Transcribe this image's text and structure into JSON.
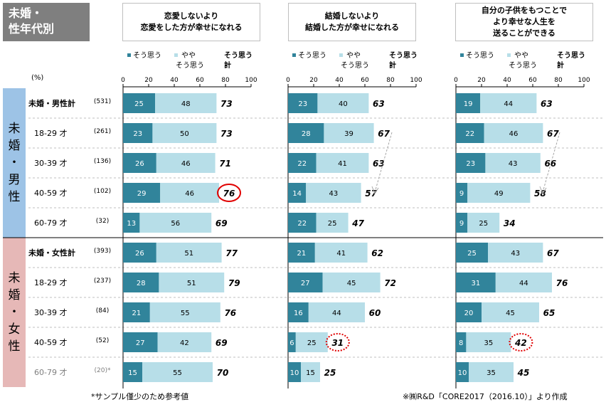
{
  "title": {
    "line1": "未婚・",
    "line2": "性年代別"
  },
  "unit": "(%)",
  "legend": {
    "strong": "そう思う",
    "weak_line1": "やや",
    "weak_line2": "そう思う",
    "total_line1": "そう思う",
    "total_line2": "計"
  },
  "questions": [
    {
      "line1": "恋愛しないより",
      "line2": "恋愛をした方が幸せになれる",
      "line3": ""
    },
    {
      "line1": "結婚しないより",
      "line2": "結婚した方が幸せになれる",
      "line3": ""
    },
    {
      "line1": "自分の子供をもつことで",
      "line2": "より幸せな人生を",
      "line3": "送ることができる"
    }
  ],
  "groups": [
    {
      "chars": [
        "未",
        "婚",
        "・",
        "男",
        "性"
      ]
    },
    {
      "chars": [
        "未",
        "婚",
        "・",
        "女",
        "性"
      ]
    }
  ],
  "rows": [
    {
      "label": "未婚・男性計",
      "n": "(531)",
      "bold": true
    },
    {
      "label": "18-29 才",
      "n": "(261)",
      "bold": false
    },
    {
      "label": "30-39 才",
      "n": "(136)",
      "bold": false
    },
    {
      "label": "40-59 才",
      "n": "(102)",
      "bold": false
    },
    {
      "label": "60-79 才",
      "n": "(32)",
      "bold": false
    },
    {
      "label": "未婚・女性計",
      "n": "(393)",
      "bold": true
    },
    {
      "label": "18-29 才",
      "n": "(237)",
      "bold": false
    },
    {
      "label": "30-39 才",
      "n": "(84)",
      "bold": false
    },
    {
      "label": "40-59 才",
      "n": "(52)",
      "bold": false
    },
    {
      "label": "60-79 才",
      "n": "(20)*",
      "bold": false,
      "muted": true
    }
  ],
  "note_left": "*サンプル僅少のため参考値",
  "note_right": "※㈱R&D「CORE2017（2016.10）」より作成",
  "colors": {
    "strong": "#31849b",
    "weak": "#b7dee8",
    "male_bg": "#9dc3e6",
    "female_bg": "#e6b8b7",
    "highlight": "#e00000",
    "arrow": "#a6a6a6"
  },
  "chart_data": {
    "type": "bar",
    "stacked": true,
    "orientation": "horizontal",
    "xlim": [
      0,
      100
    ],
    "ticks": [
      0,
      20,
      40,
      60,
      80,
      100
    ],
    "categories": [
      "未婚・男性計",
      "18-29 才",
      "30-39 才",
      "40-59 才",
      "60-79 才",
      "未婚・女性計",
      "18-29 才",
      "30-39 才",
      "40-59 才",
      "60-79 才"
    ],
    "panels": [
      {
        "title": "恋愛しないより恋愛をした方が幸せになれる",
        "series": [
          {
            "name": "そう思う",
            "values": [
              25,
              23,
              26,
              29,
              13,
              26,
              28,
              21,
              27,
              15
            ]
          },
          {
            "name": "やや そう思う",
            "values": [
              48,
              50,
              46,
              46,
              56,
              51,
              51,
              55,
              42,
              55
            ]
          }
        ],
        "totals": [
          73,
          73,
          71,
          76,
          69,
          77,
          79,
          76,
          69,
          70
        ],
        "highlight": [
          {
            "row": 3,
            "style": "solid"
          }
        ]
      },
      {
        "title": "結婚しないより結婚した方が幸せになれる",
        "series": [
          {
            "name": "そう思う",
            "values": [
              23,
              28,
              22,
              14,
              22,
              21,
              27,
              16,
              6,
              10
            ]
          },
          {
            "name": "やや そう思う",
            "values": [
              40,
              39,
              41,
              43,
              25,
              41,
              45,
              44,
              25,
              15
            ]
          }
        ],
        "totals": [
          63,
          67,
          63,
          57,
          47,
          62,
          72,
          60,
          31,
          25
        ],
        "highlight": [
          {
            "row": 8,
            "style": "dotted"
          }
        ],
        "arrow": true
      },
      {
        "title": "自分の子供をもつことでより幸せな人生を送ることができる",
        "series": [
          {
            "name": "そう思う",
            "values": [
              19,
              22,
              23,
              9,
              9,
              25,
              31,
              20,
              8,
              10
            ]
          },
          {
            "name": "やや そう思う",
            "values": [
              44,
              46,
              43,
              49,
              25,
              43,
              44,
              45,
              35,
              35
            ]
          }
        ],
        "totals": [
          63,
          67,
          66,
          58,
          34,
          67,
          76,
          65,
          42,
          45
        ],
        "highlight": [
          {
            "row": 8,
            "style": "dotted"
          }
        ],
        "arrow": true
      }
    ]
  }
}
